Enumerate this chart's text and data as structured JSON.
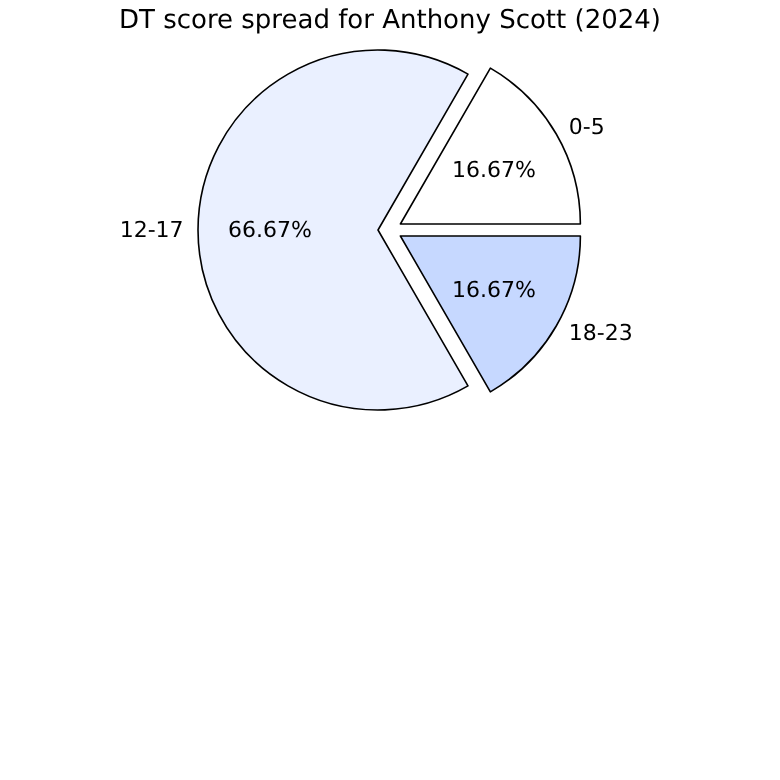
{
  "chart_data": {
    "type": "pie",
    "title": "DT score spread for Anthony Scott (2024)",
    "categories": [
      "0-5",
      "12-17",
      "18-23"
    ],
    "values": [
      16.67,
      66.67,
      16.67
    ],
    "colors": [
      "#ffffff",
      "#eaf0ff",
      "#c6d8ff"
    ],
    "value_labels": [
      "16.67%",
      "66.67%",
      "16.67%"
    ]
  }
}
